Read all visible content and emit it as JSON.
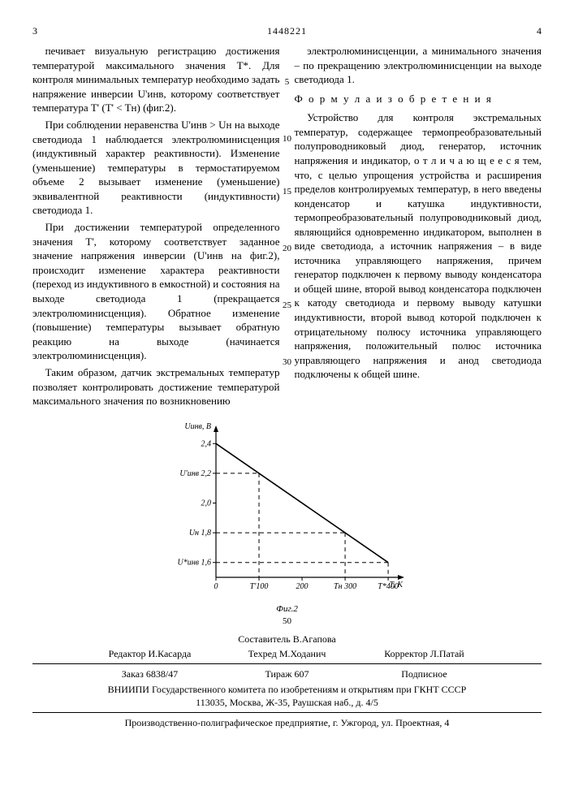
{
  "header": {
    "left_page": "3",
    "doc_number": "1448221",
    "right_page": "4"
  },
  "left_col": {
    "p1": "печивает визуальную регистрацию достижения температурой максимального значения T*. Для контроля минимальных температур необходимо задать напряжение инверсии U'инв, которому соответствует температура T' (T' < Tн) (фиг.2).",
    "p2": "При соблюдении неравенства U'инв > Uн на выходе светодиода 1 наблюдается электролюминисценция (индуктивный характер реактивности). Изменение (уменьшение) температуры в термостатируемом объеме 2 вызывает изменение (уменьшение) эквивалентной реактивности (индуктивности) светодиода 1.",
    "p3": "При достижении температурой определенного значения T', которому соответствует заданное значение напряжения инверсии (U'инв на фиг.2), происходит изменение характера реактивности (переход из индуктивного в емкостной) и состояния на выходе светодиода 1 (прекращается электролюминисценция). Обратное изменение (повышение) температуры вызывает обратную реакцию на выходе (начинается электролюминисценция).",
    "p4": "Таким образом, датчик экстремальных температур позволяет контролировать достижение температурой максимального значения по возникновению"
  },
  "right_col": {
    "p1": "электролюминисценции, а минимального значения – по прекращению электролюминисценции на выходе светодиода 1.",
    "formula_title": "Ф о р м у л а   и з о б р е т е н и я",
    "p2": "Устройство для контроля экстремальных температур, содержащее термопреобразовательный полупроводниковый диод, генератор, источник напряжения и индикатор, о т л и ч а ю щ е е с я тем, что, с целью упрощения устройства и расширения пределов контролируемых температур, в него введены конденсатор и катушка индуктивности, термопреобразовательный полупроводниковый диод, являющийся одновременно индикатором, выполнен в виде светодиода, а источник напряжения – в виде источника управляющего напряжения, причем генератор подключен к первому выводу конденсатора и общей шине, второй вывод конденсатора подключен к катоду светодиода и первому выводу катушки индуктивности, второй вывод которой подключен к отрицательному полюсу источника управляющего напряжения, положительный полюс источника управляющего напряжения и анод светодиода подключены к общей шине."
  },
  "gutter_numbers": [
    "5",
    "10",
    "15",
    "20",
    "25",
    "30"
  ],
  "chart": {
    "type": "line",
    "y_label": "Uинв, В",
    "x_label": "T, K",
    "caption": "Фиг.2",
    "page_num_below": "50",
    "x_ticks": [
      0,
      100,
      200,
      300,
      400
    ],
    "x_tick_labels": [
      "0",
      "T'100",
      "200",
      "Tн 300",
      "T*400"
    ],
    "y_ticks": [
      1.6,
      1.8,
      2.0,
      2.2,
      2.4
    ],
    "y_tick_labels": [
      "U*инв 1,6",
      "Uн 1,8",
      "2,0",
      "U'инв 2,2",
      "2,4"
    ],
    "line_points": [
      [
        0,
        2.4
      ],
      [
        400,
        1.6
      ]
    ],
    "markers_x": [
      100,
      300,
      400
    ],
    "markers_y": [
      2.2,
      1.8,
      1.6
    ],
    "axis_color": "#000000",
    "line_color": "#000000",
    "dash_color": "#000000",
    "fontsize_axis": 10,
    "line_width": 1.6,
    "xlim": [
      0,
      430
    ],
    "ylim": [
      1.5,
      2.5
    ]
  },
  "footer": {
    "compiler": "Составитель В.Агапова",
    "editor": "Редактор И.Касарда",
    "techred": "Техред М.Ходанич",
    "corrector": "Корректор Л.Патай",
    "order": "Заказ 6838/47",
    "tirazh": "Тираж 607",
    "podpisnoe": "Подписное",
    "org1": "ВНИИПИ Государственного комитета по изобретениям и открытиям при ГКНТ СССР",
    "org2": "113035, Москва, Ж-35, Раушская наб., д. 4/5",
    "org3": "Производственно-полиграфическое предприятие, г. Ужгород, ул. Проектная, 4"
  }
}
